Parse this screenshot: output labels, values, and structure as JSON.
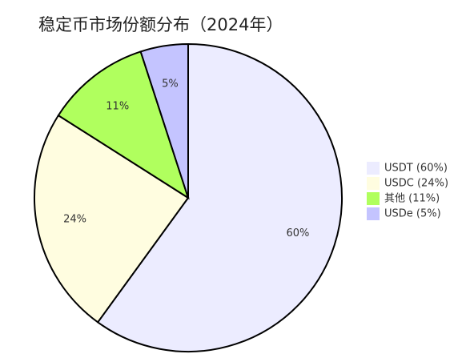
{
  "chart_data": {
    "type": "pie",
    "title": "稳定币市场份额分布（2024年）",
    "categories": [
      "USDT (60%)",
      "USDC (24%)",
      "其他 (11%)",
      "USDe (5%)"
    ],
    "values": [
      60,
      24,
      11,
      5
    ],
    "value_labels": [
      "60%",
      "24%",
      "11%",
      "5%"
    ],
    "colors": [
      "#ececff",
      "#fffde0",
      "#b0ff5e",
      "#c4c4ff"
    ],
    "legend": "right"
  }
}
